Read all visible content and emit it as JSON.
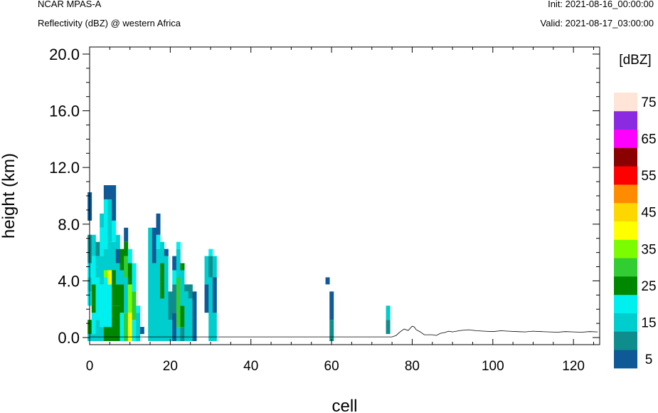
{
  "header": {
    "model": "NCAR MPAS-A",
    "variable": "Reflectivity (dBZ) @ western Africa",
    "init": "Init: 2021-08-16_00:00:00",
    "valid": "Valid: 2021-08-17_03:00:00"
  },
  "chart_data": {
    "type": "heatmap",
    "title": "Reflectivity (dBZ) @ western Africa",
    "xlabel": "cell",
    "ylabel": "height (km)",
    "xlim": [
      0,
      126.5
    ],
    "ylim": [
      -0.5,
      20.5
    ],
    "x_ticks": [
      "0",
      "20",
      "40",
      "60",
      "80",
      "100",
      "120"
    ],
    "y_ticks": [
      "0.0",
      "4.0",
      "8.0",
      "12.0",
      "16.0",
      "20.0"
    ],
    "colorbar": {
      "title": "[dBZ]",
      "levels": [
        5,
        10,
        15,
        20,
        25,
        30,
        35,
        40,
        45,
        50,
        55,
        60,
        65,
        70,
        75
      ],
      "labels": [
        "5",
        "15",
        "25",
        "35",
        "45",
        "55",
        "65",
        "75"
      ],
      "colors": [
        "#0f5a96",
        "#0f8c8c",
        "#00cdcd",
        "#00f0f0",
        "#008700",
        "#32cd32",
        "#7cfc00",
        "#ffff00",
        "#ffd700",
        "#ff8c00",
        "#ff0000",
        "#8b0000",
        "#ff00ff",
        "#8a2be2",
        "#ffe4d8"
      ]
    },
    "columns": [
      {
        "x": 0,
        "bins": [
          [
            0,
            0,
            15
          ],
          [
            0.5,
            1,
            25
          ],
          [
            2.5,
            3,
            20
          ],
          [
            3.5,
            4,
            15
          ],
          [
            4.5,
            5,
            20
          ],
          [
            5.5,
            7,
            10
          ],
          [
            8.5,
            10,
            5
          ]
        ]
      },
      {
        "x": 1,
        "bins": [
          [
            0,
            0,
            15
          ],
          [
            0.5,
            1.5,
            20
          ],
          [
            2,
            3.5,
            25
          ],
          [
            4,
            5.5,
            20
          ],
          [
            6,
            7,
            15
          ]
        ]
      },
      {
        "x": 2,
        "bins": [
          [
            0,
            1,
            15
          ],
          [
            1.5,
            4,
            20
          ],
          [
            4.5,
            5.5,
            15
          ],
          [
            6,
            6.5,
            10
          ]
        ]
      },
      {
        "x": 3,
        "bins": [
          [
            0,
            0.5,
            15
          ],
          [
            1,
            3.5,
            20
          ],
          [
            4,
            5.5,
            15
          ],
          [
            6,
            7.5,
            20
          ],
          [
            8,
            8.5,
            15
          ]
        ]
      },
      {
        "x": 4,
        "bins": [
          [
            0,
            0.5,
            25
          ],
          [
            1,
            4,
            20
          ],
          [
            4.5,
            4.5,
            35
          ],
          [
            5,
            6,
            15
          ],
          [
            6.5,
            9.5,
            20
          ],
          [
            10,
            10.5,
            5
          ]
        ]
      },
      {
        "x": 5,
        "bins": [
          [
            0,
            0.5,
            25
          ],
          [
            1,
            3.5,
            20
          ],
          [
            4,
            4.5,
            40
          ],
          [
            5,
            6.5,
            15
          ],
          [
            7,
            9.5,
            15
          ],
          [
            10,
            10.5,
            5
          ]
        ]
      },
      {
        "x": 6,
        "bins": [
          [
            0,
            2,
            25
          ],
          [
            2.5,
            3.5,
            25
          ],
          [
            4,
            4.5,
            25
          ],
          [
            5,
            6.5,
            15
          ],
          [
            7,
            8,
            20
          ],
          [
            8.5,
            10.5,
            5
          ]
        ]
      },
      {
        "x": 7,
        "bins": [
          [
            0,
            2,
            25
          ],
          [
            2.5,
            3.5,
            25
          ],
          [
            4,
            5,
            15
          ],
          [
            5.5,
            6,
            5
          ],
          [
            6.5,
            7,
            15
          ]
        ]
      },
      {
        "x": 8,
        "bins": [
          [
            0,
            1.5,
            20
          ],
          [
            2,
            3.5,
            25
          ],
          [
            4,
            4.5,
            15
          ],
          [
            5,
            6,
            25
          ]
        ]
      },
      {
        "x": 9,
        "bins": [
          [
            0,
            1.5,
            30
          ],
          [
            2,
            4,
            15
          ],
          [
            4.5,
            5.5,
            30
          ],
          [
            6,
            6.5,
            25
          ],
          [
            7,
            7.5,
            5
          ]
        ]
      },
      {
        "x": 10,
        "bins": [
          [
            0,
            1.5,
            40
          ],
          [
            2,
            3.5,
            35
          ],
          [
            4,
            5,
            25
          ],
          [
            5.5,
            6,
            20
          ]
        ]
      },
      {
        "x": 11,
        "bins": [
          [
            0,
            1,
            20
          ],
          [
            1.5,
            3,
            30
          ],
          [
            3.5,
            5,
            20
          ]
        ]
      },
      {
        "x": 12,
        "bins": [
          [
            0,
            1.5,
            15
          ],
          [
            2,
            2,
            20
          ]
        ]
      },
      {
        "x": 13,
        "bins": [
          [
            0.5,
            0.5,
            5
          ]
        ]
      },
      {
        "x": 15,
        "bins": [
          [
            0,
            7.5,
            15
          ]
        ]
      },
      {
        "x": 16,
        "bins": [
          [
            0,
            5,
            15
          ],
          [
            5.5,
            7.5,
            5
          ]
        ]
      },
      {
        "x": 17,
        "bins": [
          [
            0,
            6,
            15
          ],
          [
            6.5,
            7,
            20
          ],
          [
            7.5,
            8.5,
            5
          ]
        ]
      },
      {
        "x": 18,
        "bins": [
          [
            0,
            2.5,
            15
          ],
          [
            3,
            5,
            25
          ],
          [
            5.5,
            6.5,
            15
          ]
        ]
      },
      {
        "x": 19,
        "bins": [
          [
            0,
            5.5,
            15
          ],
          [
            6,
            6,
            5
          ]
        ]
      },
      {
        "x": 20,
        "bins": [
          [
            0,
            1,
            15
          ],
          [
            1.5,
            3,
            10
          ]
        ]
      },
      {
        "x": 21,
        "bins": [
          [
            0,
            1.5,
            5
          ],
          [
            2,
            3.5,
            10
          ],
          [
            4,
            4.5,
            20
          ],
          [
            5,
            5.5,
            5
          ]
        ]
      },
      {
        "x": 22,
        "bins": [
          [
            0,
            0.5,
            15
          ],
          [
            1,
            4,
            30
          ],
          [
            4.5,
            6,
            15
          ],
          [
            6.5,
            6.5,
            20
          ]
        ]
      },
      {
        "x": 23,
        "bins": [
          [
            0,
            0.5,
            10
          ],
          [
            1,
            2,
            25
          ],
          [
            2.5,
            4.5,
            15
          ],
          [
            5,
            5,
            25
          ]
        ]
      },
      {
        "x": 24,
        "bins": [
          [
            0,
            3,
            15
          ],
          [
            3.5,
            3.5,
            10
          ]
        ]
      },
      {
        "x": 25,
        "bins": [
          [
            0,
            2.5,
            15
          ],
          [
            3,
            3.5,
            10
          ]
        ]
      },
      {
        "x": 26,
        "bins": [
          [
            0,
            3,
            5
          ]
        ]
      },
      {
        "x": 29,
        "bins": [
          [
            2,
            3.5,
            5
          ],
          [
            4,
            5.5,
            15
          ]
        ]
      },
      {
        "x": 30,
        "bins": [
          [
            0,
            4,
            15
          ],
          [
            4.5,
            5.5,
            10
          ],
          [
            6,
            6,
            20
          ]
        ]
      },
      {
        "x": 31,
        "bins": [
          [
            0,
            1.5,
            15
          ],
          [
            2,
            4,
            5
          ],
          [
            4.5,
            5.5,
            15
          ]
        ]
      },
      {
        "x": 59,
        "bins": [
          [
            4,
            4,
            5
          ]
        ]
      },
      {
        "x": 60,
        "bins": [
          [
            0,
            1,
            10
          ],
          [
            1.5,
            3,
            5
          ]
        ]
      },
      {
        "x": 74,
        "bins": [
          [
            0.5,
            1,
            10
          ],
          [
            1.5,
            2,
            15
          ]
        ]
      }
    ],
    "terrain": {
      "x": [
        0,
        20,
        40,
        60,
        75,
        76,
        77,
        78,
        79,
        80,
        80.5,
        81,
        82,
        83,
        84,
        85,
        86,
        87,
        88,
        89,
        90,
        92,
        94,
        96,
        98,
        100,
        102,
        104,
        106,
        108,
        110,
        112,
        114,
        116,
        118,
        120,
        122,
        124,
        126
      ],
      "y": [
        0.05,
        0.05,
        0.05,
        0.05,
        0.05,
        0.15,
        0.4,
        0.6,
        0.5,
        0.8,
        0.75,
        0.55,
        0.4,
        0.2,
        0.2,
        0.2,
        0.15,
        0.3,
        0.35,
        0.45,
        0.4,
        0.5,
        0.55,
        0.48,
        0.45,
        0.42,
        0.48,
        0.45,
        0.42,
        0.4,
        0.45,
        0.42,
        0.4,
        0.38,
        0.42,
        0.4,
        0.38,
        0.42,
        0.4
      ]
    }
  }
}
